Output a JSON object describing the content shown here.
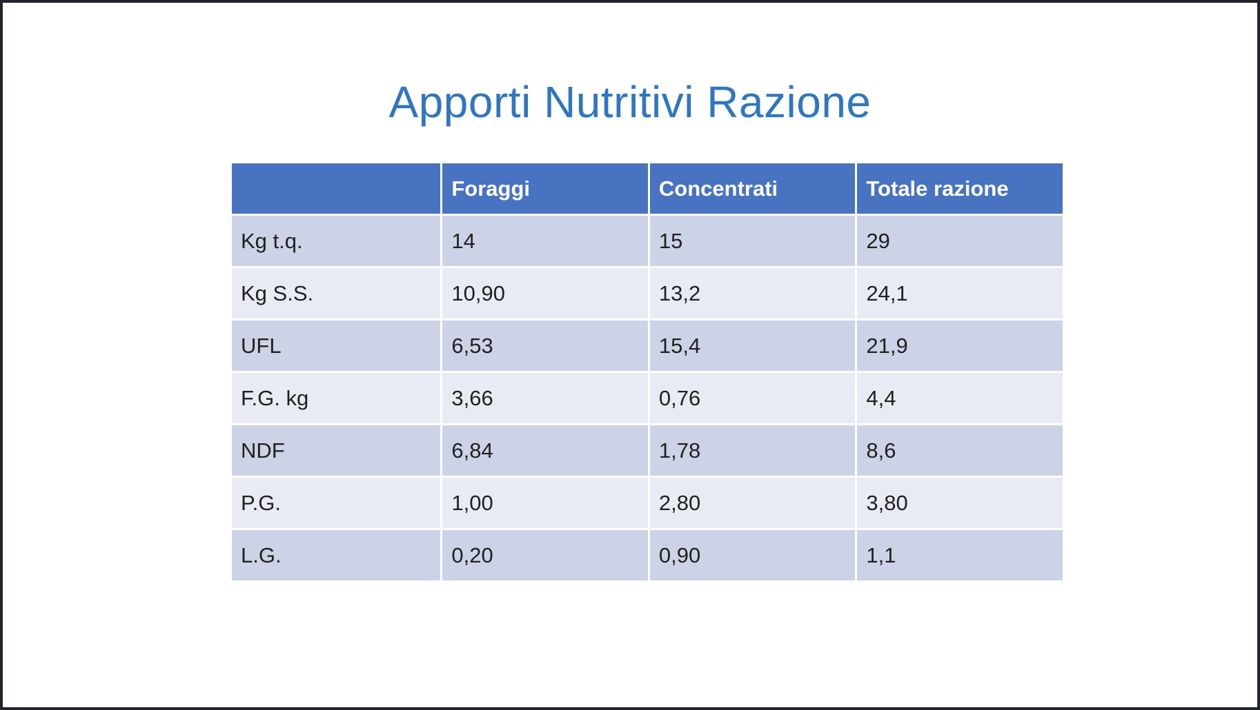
{
  "slide": {
    "title": "Apporti Nutritivi Razione"
  },
  "colors": {
    "title_text": "#2f76bf",
    "header_fill": "#4873c1",
    "header_text": "#ffffff",
    "band_dark": "#cdd3e7",
    "band_light": "#e9ebf4",
    "frame_border": "#22252b"
  },
  "table": {
    "columns": [
      "",
      "Foraggi",
      "Concentrati",
      "Totale razione"
    ],
    "rows": [
      {
        "label": "Kg t.q.",
        "values": [
          "14",
          "15",
          "29"
        ]
      },
      {
        "label": "Kg S.S.",
        "values": [
          "10,90",
          "13,2",
          "24,1"
        ]
      },
      {
        "label": "UFL",
        "values": [
          "6,53",
          "15,4",
          "21,9"
        ]
      },
      {
        "label": "F.G. kg",
        "values": [
          "3,66",
          "0,76",
          "4,4"
        ]
      },
      {
        "label": "NDF",
        "values": [
          "6,84",
          "1,78",
          "8,6"
        ]
      },
      {
        "label": "P.G.",
        "values": [
          "1,00",
          "2,80",
          "3,80"
        ]
      },
      {
        "label": "L.G.",
        "values": [
          "0,20",
          "0,90",
          "1,1"
        ]
      }
    ]
  }
}
